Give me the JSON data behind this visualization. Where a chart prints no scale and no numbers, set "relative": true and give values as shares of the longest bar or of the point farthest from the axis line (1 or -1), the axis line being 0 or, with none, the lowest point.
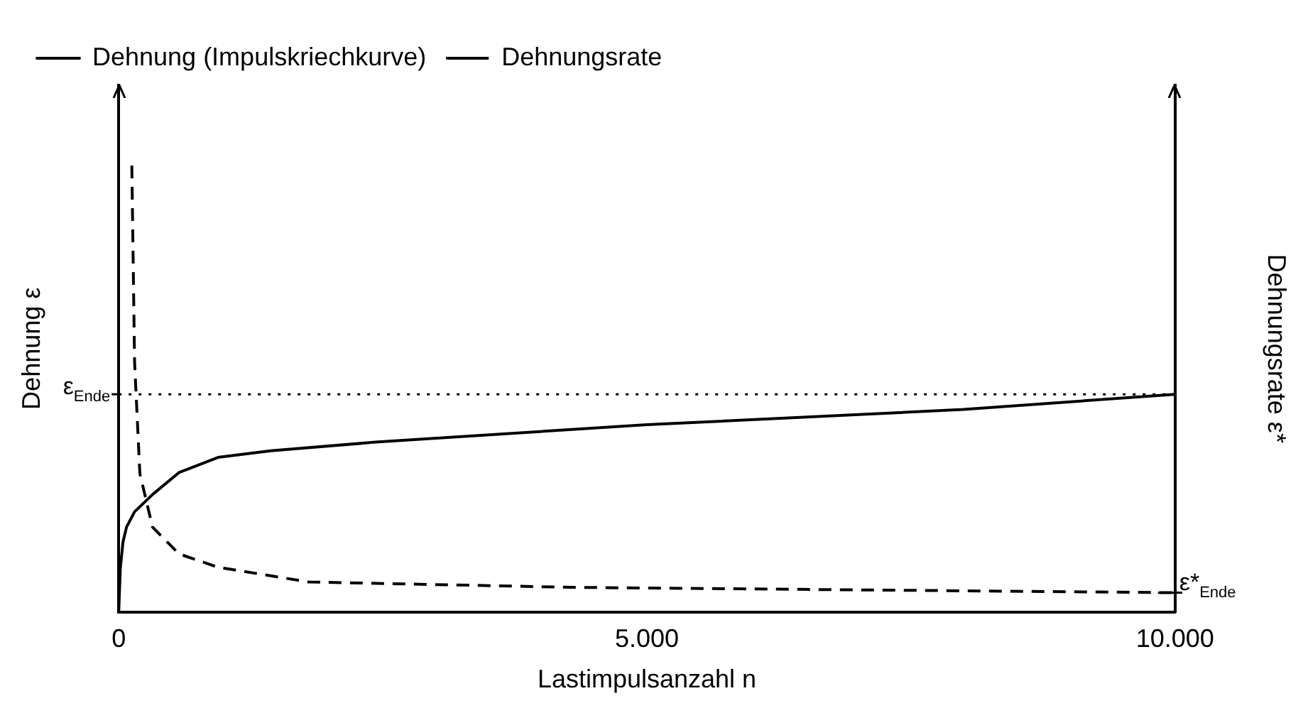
{
  "chart_data": {
    "type": "line",
    "xlabel": "Lastimpulsanzahl n",
    "ylabel": "Dehnung ε",
    "y2label": "Dehnungsrate ε*",
    "relative": true,
    "legend": "top left",
    "grid": false,
    "marker": "none",
    "xlim": [
      0,
      10000
    ],
    "xticks": [
      0,
      {
        "value": 5000,
        "label": "5.000"
      },
      {
        "value": 10000,
        "label": "10.000"
      }
    ],
    "series": [
      {
        "name": "Dehnung (Impulskriechkurve)",
        "color": "#000000",
        "line_style": "solid",
        "x": [
          0,
          15,
          40,
          74,
          150,
          322,
          570,
          940,
          1440,
          2430,
          5000,
          8000,
          10000
        ],
        "values": [
          0,
          0.2,
          0.32,
          0.39,
          0.46,
          0.54,
          0.64,
          0.71,
          0.74,
          0.78,
          0.86,
          0.93,
          1
        ]
      },
      {
        "name": "Dehnungsrate",
        "color": "#000000",
        "line_style": "dashed",
        "axis": "y2",
        "x": [
          124,
          150,
          200,
          320,
          570,
          940,
          1800,
          4280,
          10000
        ],
        "values": [
          1,
          0.56,
          0.31,
          0.19,
          0.13,
          0.1,
          0.067,
          0.055,
          0.043
        ]
      }
    ],
    "ref_lines": [
      {
        "axis": "y",
        "value": 1,
        "label": "ε$_{Ende}$",
        "line_style": "dotted"
      },
      {
        "axis": "y2",
        "value": 0.043,
        "label": "ε*$_{Ende}$",
        "line_style": "solid"
      }
    ]
  }
}
